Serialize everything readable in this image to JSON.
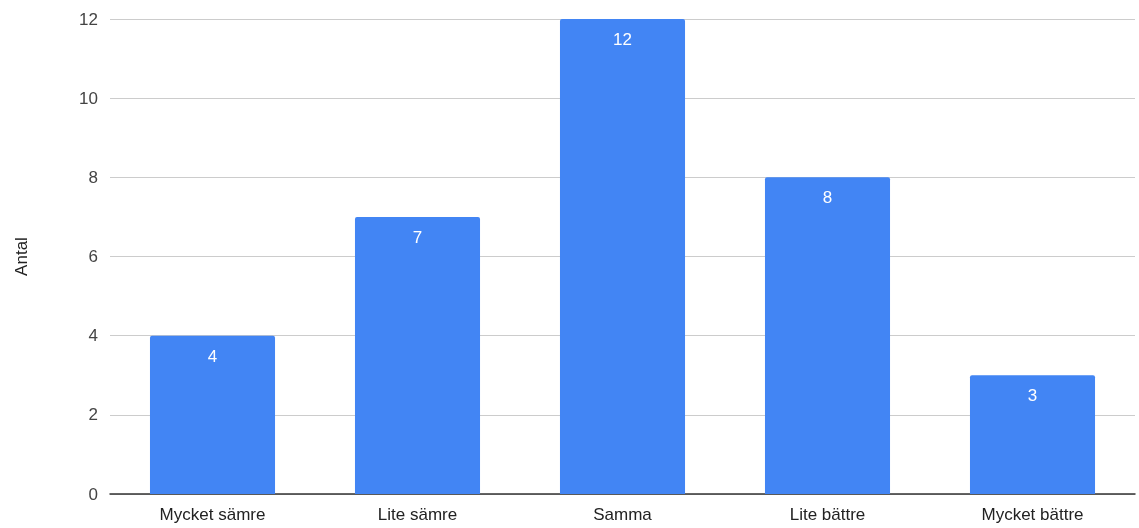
{
  "chart_data": {
    "type": "bar",
    "ylabel": "Antal",
    "categories": [
      "Mycket sämre",
      "Lite sämre",
      "Samma",
      "Lite bättre",
      "Mycket bättre"
    ],
    "values": [
      4,
      7,
      12,
      8,
      3
    ],
    "color": "#4285f4",
    "ylim": [
      0,
      12
    ],
    "yticks": [
      0,
      2,
      4,
      6,
      8,
      10,
      12
    ],
    "grid": "y",
    "data_labels": true
  }
}
